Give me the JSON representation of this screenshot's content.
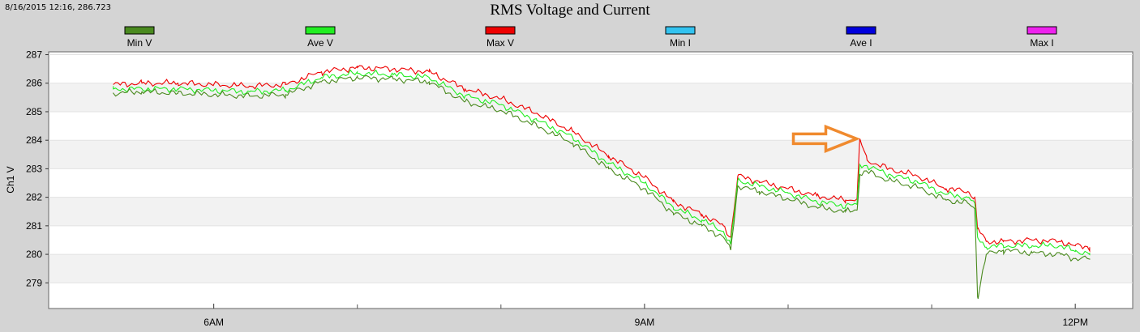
{
  "status": {
    "cursor_readout": "8/16/2015 12:16, 286.723"
  },
  "legend": [
    {
      "label": "Min V",
      "color": "#4a8a1f"
    },
    {
      "label": "Ave V",
      "color": "#22ee22"
    },
    {
      "label": "Max V",
      "color": "#ee0000"
    },
    {
      "label": "Min I",
      "color": "#33c3f0"
    },
    {
      "label": "Ave I",
      "color": "#0000dd"
    },
    {
      "label": "Max I",
      "color": "#ee22ee"
    }
  ],
  "annotation": {
    "type": "arrow",
    "color": "#f08a2e",
    "points_to": {
      "x": 10.5,
      "y": 284.05
    }
  },
  "chart_data": {
    "type": "line",
    "title": "RMS Voltage and Current",
    "ylabel": "Ch1 V",
    "xlabel": "",
    "x_unit": "hours",
    "xlim": [
      4.85,
      12.4
    ],
    "ylim": [
      278.1,
      287.1
    ],
    "x_ticks": [
      {
        "value": 6,
        "label": "6AM"
      },
      {
        "value": 9,
        "label": "9AM"
      },
      {
        "value": 12,
        "label": "12PM"
      }
    ],
    "x_minor_ticks": [
      7,
      8,
      10,
      11
    ],
    "y_ticks": [
      279,
      280,
      281,
      282,
      283,
      284,
      285,
      286,
      287
    ],
    "grid": "horizontal bands",
    "series": [
      {
        "name": "Max V",
        "color": "#ee0000",
        "x": [
          5.3,
          5.5,
          5.75,
          6.0,
          6.25,
          6.5,
          6.75,
          7.0,
          7.25,
          7.5,
          7.75,
          8.0,
          8.25,
          8.5,
          8.75,
          9.0,
          9.2,
          9.4,
          9.55,
          9.6,
          9.65,
          9.8,
          10.0,
          10.2,
          10.4,
          10.48,
          10.5,
          10.55,
          10.7,
          10.9,
          11.1,
          11.25,
          11.3,
          11.32,
          11.38,
          11.5,
          11.7,
          11.9,
          12.0,
          12.1
        ],
        "y": [
          285.95,
          286.0,
          286.0,
          285.95,
          285.9,
          285.95,
          286.4,
          286.55,
          286.5,
          286.4,
          285.8,
          285.45,
          284.95,
          284.3,
          283.45,
          282.7,
          281.85,
          281.4,
          281.0,
          280.6,
          282.75,
          282.55,
          282.3,
          282.05,
          281.9,
          281.95,
          284.05,
          283.3,
          283.0,
          282.75,
          282.3,
          282.2,
          282.0,
          280.9,
          280.45,
          280.45,
          280.5,
          280.45,
          280.3,
          280.25
        ]
      },
      {
        "name": "Ave V",
        "color": "#22ee22",
        "x": [
          5.3,
          5.5,
          5.75,
          6.0,
          6.25,
          6.5,
          6.75,
          7.0,
          7.25,
          7.5,
          7.75,
          8.0,
          8.25,
          8.5,
          8.75,
          9.0,
          9.2,
          9.4,
          9.55,
          9.6,
          9.65,
          9.8,
          10.0,
          10.2,
          10.4,
          10.48,
          10.5,
          10.55,
          10.7,
          10.9,
          11.1,
          11.25,
          11.3,
          11.32,
          11.38,
          11.5,
          11.7,
          11.9,
          12.0,
          12.1
        ],
        "y": [
          285.8,
          285.8,
          285.8,
          285.75,
          285.7,
          285.75,
          286.2,
          286.35,
          286.3,
          286.2,
          285.55,
          285.25,
          284.7,
          284.1,
          283.2,
          282.5,
          281.65,
          281.2,
          280.8,
          280.35,
          282.6,
          282.4,
          282.15,
          281.85,
          281.7,
          281.75,
          283.15,
          283.1,
          282.8,
          282.55,
          282.1,
          282.0,
          281.8,
          280.6,
          280.25,
          280.3,
          280.3,
          280.3,
          280.1,
          280.05
        ]
      },
      {
        "name": "Min V",
        "color": "#4a8a1f",
        "x": [
          5.3,
          5.5,
          5.75,
          6.0,
          6.25,
          6.5,
          6.75,
          7.0,
          7.25,
          7.5,
          7.75,
          8.0,
          8.25,
          8.5,
          8.75,
          9.0,
          9.2,
          9.4,
          9.55,
          9.6,
          9.65,
          9.8,
          10.0,
          10.2,
          10.4,
          10.48,
          10.5,
          10.55,
          10.7,
          10.9,
          11.1,
          11.25,
          11.3,
          11.32,
          11.38,
          11.5,
          11.7,
          11.9,
          12.0,
          12.1
        ],
        "y": [
          285.65,
          285.7,
          285.65,
          285.6,
          285.55,
          285.6,
          286.05,
          286.2,
          286.15,
          286.05,
          285.35,
          285.05,
          284.5,
          283.9,
          283.0,
          282.3,
          281.45,
          281.0,
          280.6,
          280.15,
          282.4,
          282.2,
          281.95,
          281.65,
          281.5,
          281.55,
          282.8,
          282.9,
          282.6,
          282.35,
          281.9,
          281.8,
          281.6,
          278.5,
          280.0,
          280.15,
          280.05,
          280.0,
          279.85,
          279.85
        ]
      }
    ]
  }
}
